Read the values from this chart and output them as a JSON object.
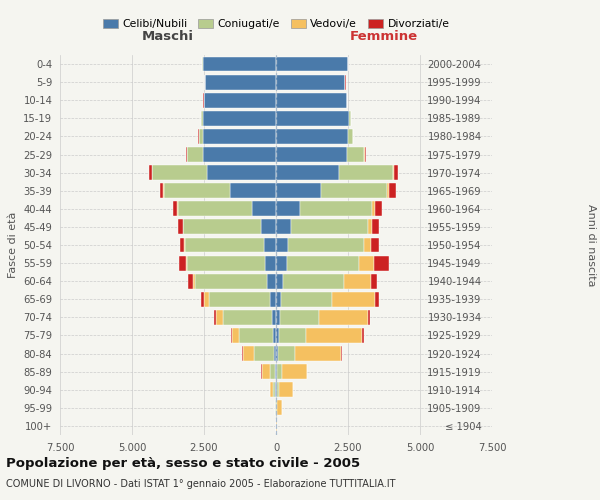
{
  "age_groups": [
    "100+",
    "95-99",
    "90-94",
    "85-89",
    "80-84",
    "75-79",
    "70-74",
    "65-69",
    "60-64",
    "55-59",
    "50-54",
    "45-49",
    "40-44",
    "35-39",
    "30-34",
    "25-29",
    "20-24",
    "15-19",
    "10-14",
    "5-9",
    "0-4"
  ],
  "birth_years": [
    "≤ 1904",
    "1905-1909",
    "1910-1914",
    "1915-1919",
    "1920-1924",
    "1925-1929",
    "1930-1934",
    "1935-1939",
    "1940-1944",
    "1945-1949",
    "1950-1954",
    "1955-1959",
    "1960-1964",
    "1965-1969",
    "1970-1974",
    "1975-1979",
    "1980-1984",
    "1985-1989",
    "1990-1994",
    "1995-1999",
    "2000-2004"
  ],
  "maschi": {
    "celibi": [
      5,
      10,
      25,
      40,
      60,
      100,
      150,
      220,
      300,
      380,
      400,
      520,
      820,
      1600,
      2400,
      2550,
      2550,
      2550,
      2500,
      2450,
      2550
    ],
    "coniugati": [
      5,
      15,
      70,
      180,
      700,
      1200,
      1700,
      2100,
      2500,
      2700,
      2750,
      2700,
      2600,
      2300,
      1900,
      550,
      130,
      40,
      10,
      5,
      5
    ],
    "vedovi": [
      5,
      25,
      100,
      280,
      380,
      220,
      230,
      180,
      90,
      60,
      30,
      20,
      15,
      10,
      10,
      5,
      5,
      5,
      5,
      5,
      5
    ],
    "divorziati": [
      0,
      0,
      5,
      10,
      30,
      50,
      90,
      110,
      150,
      220,
      170,
      150,
      140,
      130,
      90,
      20,
      10,
      5,
      5,
      5,
      5
    ]
  },
  "femmine": {
    "nubili": [
      5,
      10,
      25,
      40,
      60,
      90,
      130,
      190,
      260,
      370,
      400,
      530,
      830,
      1550,
      2200,
      2450,
      2500,
      2550,
      2450,
      2400,
      2500
    ],
    "coniugate": [
      5,
      15,
      70,
      180,
      600,
      950,
      1350,
      1750,
      2100,
      2500,
      2650,
      2650,
      2500,
      2300,
      1850,
      620,
      160,
      50,
      15,
      5,
      5
    ],
    "vedove": [
      25,
      170,
      500,
      850,
      1600,
      1950,
      1700,
      1500,
      950,
      520,
      260,
      160,
      110,
      65,
      30,
      12,
      5,
      5,
      5,
      5,
      5
    ],
    "divorziate": [
      0,
      0,
      5,
      10,
      30,
      55,
      90,
      140,
      210,
      530,
      270,
      240,
      240,
      260,
      140,
      30,
      15,
      5,
      5,
      5,
      5
    ]
  },
  "colors": {
    "celibi": "#4a7aaa",
    "coniugati": "#b8cc8e",
    "vedovi": "#f5c060",
    "divorziati": "#cc2222"
  },
  "xlim": 7500,
  "title": "Popolazione per età, sesso e stato civile - 2005",
  "subtitle": "COMUNE DI LIVORNO - Dati ISTAT 1° gennaio 2005 - Elaborazione TUTTITALIA.IT",
  "ylabel_left": "Fasce di età",
  "ylabel_right": "Anni di nascita",
  "xlabel_left": "Maschi",
  "xlabel_right": "Femmine",
  "legend_labels": [
    "Celibi/Nubili",
    "Coniugati/e",
    "Vedovi/e",
    "Divorziati/e"
  ],
  "background_color": "#f5f5f0",
  "bar_height": 0.82
}
